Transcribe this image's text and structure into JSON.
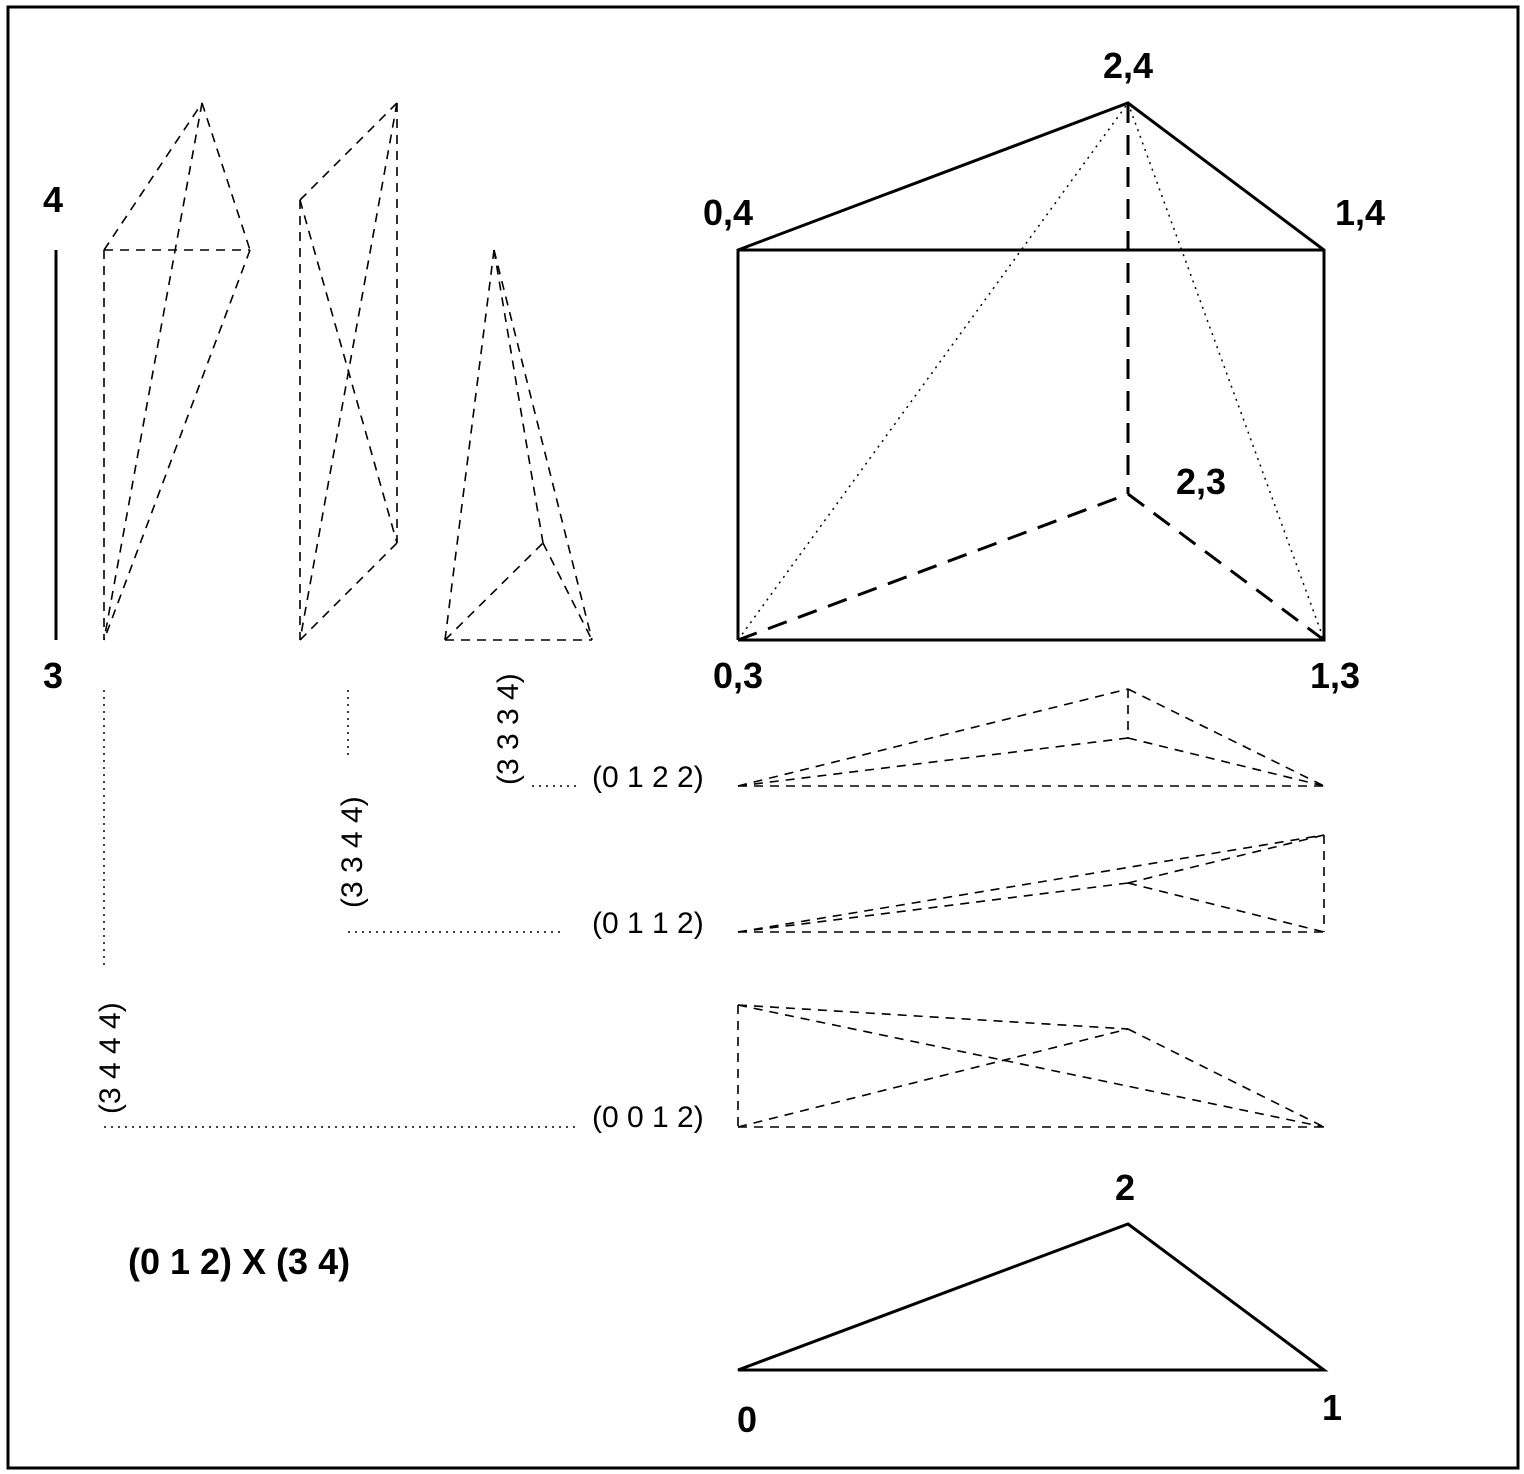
{
  "prism_vertices": {
    "v03": "0,3",
    "v13": "1,3",
    "v23": "2,3",
    "v04": "0,4",
    "v14": "1,4",
    "v24": "2,4"
  },
  "segment_vertices": {
    "v3": "3",
    "v4": "4"
  },
  "triangle_vertices": {
    "v0": "0",
    "v1": "1",
    "v2": "2"
  },
  "simplex_labels": {
    "s1_top": "(3 3 3 4)",
    "s1_bottom": "(0 1 2 2)",
    "s2_top": "(3 3 4 4)",
    "s2_bottom": "(0 1 1 2)",
    "s3_top": "(3 4 4 4)",
    "s3_bottom": "(0 0 1 2)"
  },
  "product_label": "(0 1 2) X (3 4)"
}
